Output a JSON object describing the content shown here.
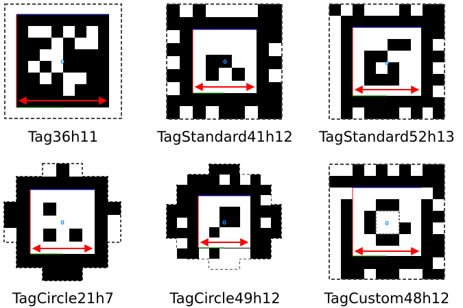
{
  "colors": {
    "black": "#000000",
    "white": "#ffffff",
    "dashed_border": "#444444",
    "arrow": "#ff0000",
    "id_text": "#1e90ff",
    "inner_top": "#0000ff",
    "inner_left": "#ff0000",
    "inner_bottom": "#00aa00"
  },
  "tags": [
    {
      "name": "Tag36h11",
      "id": "0"
    },
    {
      "name": "TagStandard41h12",
      "id": "0"
    },
    {
      "name": "TagStandard52h13",
      "id": "0"
    },
    {
      "name": "TagCircle21h7",
      "id": "0"
    },
    {
      "name": "TagCircle49h12",
      "id": "0"
    },
    {
      "name": "TagCustom48h12",
      "id": "0"
    }
  ]
}
